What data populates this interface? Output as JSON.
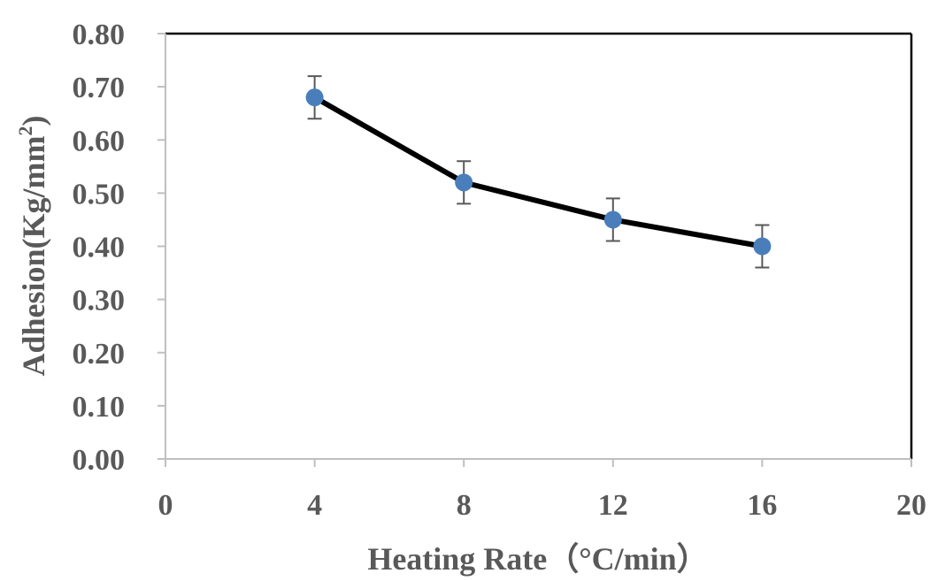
{
  "chart_data": {
    "type": "line",
    "title": "",
    "xlabel": "Heating Rate（°C/min）",
    "ylabel_main": "Adhesion(Kg/mm",
    "ylabel_sup": "2",
    "ylabel_close": ")",
    "xlim": [
      0,
      20
    ],
    "ylim": [
      0,
      0.8
    ],
    "x_ticks": [
      0,
      4,
      8,
      12,
      16,
      20
    ],
    "x_tick_labels": [
      "0",
      "4",
      "8",
      "12",
      "16",
      "20"
    ],
    "y_ticks": [
      0,
      0.1,
      0.2,
      0.3,
      0.4,
      0.5,
      0.6,
      0.7,
      0.8
    ],
    "y_tick_labels": [
      "0.00",
      "0.10",
      "0.20",
      "0.30",
      "0.40",
      "0.50",
      "0.60",
      "0.70",
      "0.80"
    ],
    "grid": false,
    "legend": "none",
    "series": [
      {
        "name": "Adhesion",
        "x": [
          4,
          8,
          12,
          16
        ],
        "values": [
          0.68,
          0.52,
          0.45,
          0.4
        ],
        "error": [
          0.04,
          0.04,
          0.04,
          0.04
        ]
      }
    ],
    "colors": {
      "line": "#000000",
      "marker": "#4A7EBB",
      "errorbar": "#595959",
      "axis": "#bfbfbf",
      "frame": "#000000",
      "text": "#595959"
    }
  }
}
